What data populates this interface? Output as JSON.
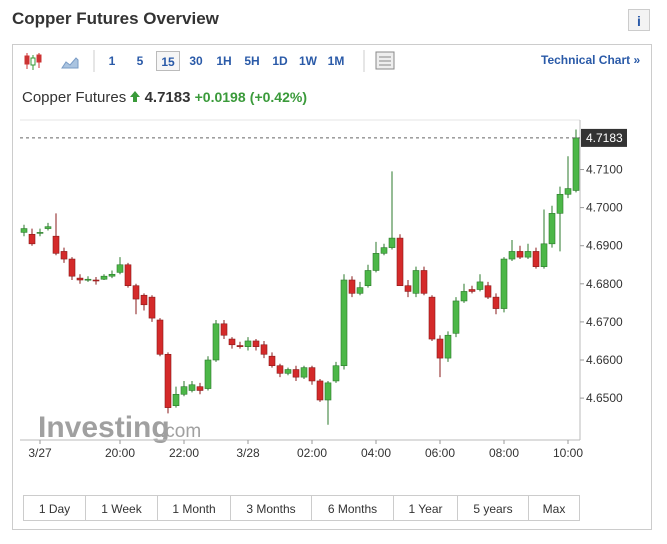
{
  "header": {
    "title": "Copper Futures Overview",
    "info": "i"
  },
  "toolbar": {
    "intervals": [
      "1",
      "5",
      "15",
      "30",
      "1H",
      "5H",
      "1D",
      "1W",
      "1M"
    ],
    "selected": "15",
    "link": "Technical Chart »"
  },
  "quote": {
    "name": "Copper Futures",
    "change": "+0.0198",
    "change_pct": "(+0.42%)"
  },
  "watermark": {
    "brand": "Investing",
    "suffix": ".com"
  },
  "ranges": [
    "1 Day",
    "1 Week",
    "1 Month",
    "3 Months",
    "6 Months",
    "1 Year",
    "5 years",
    "Max"
  ],
  "chart_data": {
    "type": "candlestick",
    "last_price": 4.7183,
    "up_color": "#4cb748",
    "down_color": "#d42a2a",
    "categories": [
      null,
      null,
      "3/27",
      null,
      null,
      null,
      null,
      null,
      null,
      null,
      null,
      null,
      "20:00",
      null,
      null,
      null,
      null,
      null,
      null,
      null,
      "22:00",
      null,
      null,
      null,
      null,
      null,
      null,
      null,
      "3/28",
      null,
      null,
      null,
      null,
      null,
      null,
      null,
      "02:00",
      null,
      null,
      null,
      null,
      null,
      null,
      null,
      "04:00",
      null,
      null,
      null,
      null,
      null,
      null,
      null,
      "06:00",
      null,
      null,
      null,
      null,
      null,
      null,
      null,
      "08:00",
      null,
      null,
      null,
      null,
      null,
      null,
      null,
      "10:00",
      null
    ],
    "open": [
      4.6935,
      4.693,
      4.6935,
      4.6945,
      4.6925,
      4.6885,
      4.6865,
      4.6815,
      4.681,
      4.681,
      4.6812,
      4.682,
      4.683,
      4.685,
      4.6795,
      4.677,
      4.6765,
      4.6705,
      4.6615,
      4.648,
      4.651,
      4.652,
      4.653,
      4.6525,
      4.66,
      4.6695,
      4.6655,
      4.6638,
      4.6635,
      4.665,
      4.664,
      4.661,
      4.6585,
      4.6565,
      4.6575,
      4.6555,
      4.658,
      4.6545,
      4.6495,
      4.6545,
      4.6585,
      4.681,
      4.6775,
      4.6795,
      4.6835,
      4.688,
      4.6895,
      4.692,
      4.6795,
      4.6775,
      4.6835,
      4.6765,
      4.6655,
      4.6605,
      4.667,
      4.6755,
      4.6785,
      4.6785,
      4.6795,
      4.6765,
      4.6735,
      4.6865,
      4.6885,
      4.687,
      4.6885,
      4.6845,
      4.6905,
      4.6985,
      4.7035,
      4.7045
    ],
    "high": [
      4.6955,
      4.6945,
      4.6945,
      4.696,
      4.6985,
      4.6895,
      4.687,
      4.6825,
      4.682,
      4.6818,
      4.6825,
      4.6835,
      4.687,
      4.6855,
      4.68,
      4.6775,
      4.677,
      4.671,
      4.662,
      4.653,
      4.6545,
      4.6545,
      4.654,
      4.661,
      4.6705,
      4.6705,
      4.666,
      4.6648,
      4.666,
      4.6655,
      4.665,
      4.662,
      4.659,
      4.658,
      4.6585,
      4.6585,
      4.6585,
      4.655,
      4.6545,
      4.6595,
      4.6825,
      4.682,
      4.6805,
      4.685,
      4.691,
      4.6905,
      4.7095,
      4.693,
      4.681,
      4.6845,
      4.6845,
      4.677,
      4.6665,
      4.6675,
      4.6765,
      4.68,
      4.6795,
      4.6825,
      4.6805,
      4.6775,
      4.687,
      4.6915,
      4.69,
      4.6905,
      4.6895,
      4.6995,
      4.7005,
      4.7055,
      4.7135,
      4.7205
    ],
    "low": [
      4.6925,
      4.69,
      4.6925,
      4.694,
      4.6875,
      4.6855,
      4.681,
      4.68,
      4.6805,
      4.6798,
      4.681,
      4.6815,
      4.6825,
      4.679,
      4.672,
      4.673,
      4.67,
      4.661,
      4.646,
      4.6475,
      4.6505,
      4.6515,
      4.651,
      4.652,
      4.6595,
      4.6655,
      4.663,
      4.663,
      4.6625,
      4.6625,
      4.6605,
      4.658,
      4.6555,
      4.656,
      4.6545,
      4.655,
      4.6535,
      4.649,
      4.643,
      4.654,
      4.6575,
      4.6765,
      4.677,
      4.679,
      4.683,
      4.6875,
      4.689,
      4.6795,
      4.6765,
      4.6765,
      4.677,
      4.665,
      4.6555,
      4.6595,
      4.666,
      4.675,
      4.6775,
      4.678,
      4.676,
      4.672,
      4.6725,
      4.686,
      4.6865,
      4.6865,
      4.684,
      4.684,
      4.6895,
      4.6885,
      4.7025,
      4.704
    ],
    "close": [
      4.6945,
      4.6905,
      4.6935,
      4.695,
      4.688,
      4.6865,
      4.682,
      4.681,
      4.6812,
      4.6808,
      4.682,
      4.6825,
      4.685,
      4.6795,
      4.676,
      4.6745,
      4.671,
      4.6615,
      4.6475,
      4.651,
      4.653,
      4.6535,
      4.652,
      4.66,
      4.6695,
      4.6665,
      4.664,
      4.6635,
      4.665,
      4.6635,
      4.6615,
      4.6585,
      4.6565,
      4.6575,
      4.6555,
      4.658,
      4.6545,
      4.6495,
      4.654,
      4.6585,
      4.681,
      4.6775,
      4.679,
      4.6835,
      4.688,
      4.6895,
      4.692,
      4.6795,
      4.678,
      4.6835,
      4.6775,
      4.6655,
      4.6605,
      4.6665,
      4.6755,
      4.678,
      4.678,
      4.6805,
      4.6765,
      4.6735,
      4.6865,
      4.6885,
      4.687,
      4.6885,
      4.6845,
      4.6905,
      4.6985,
      4.7035,
      4.705,
      4.7183
    ],
    "ylim": [
      4.639,
      4.723
    ],
    "yticks": [
      {
        "value": 4.65,
        "label": "4.6500"
      },
      {
        "value": 4.66,
        "label": "4.6600"
      },
      {
        "value": 4.67,
        "label": "4.6700"
      },
      {
        "value": 4.68,
        "label": "4.6800"
      },
      {
        "value": 4.69,
        "label": "4.6900"
      },
      {
        "value": 4.7,
        "label": "4.7000"
      },
      {
        "value": 4.71,
        "label": "4.7100"
      }
    ]
  }
}
